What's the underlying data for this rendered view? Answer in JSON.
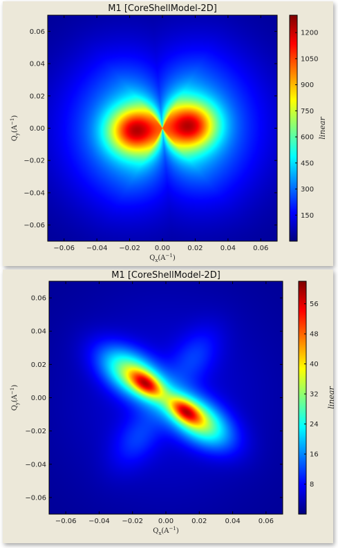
{
  "chart_data": [
    {
      "type": "heatmap",
      "title": "M1 [CoreShellModel-2D]",
      "xlabel_main": "Q",
      "xlabel_sub": "x",
      "xlabel_unit": "(A",
      "xlabel_exp": "−1",
      "xlabel_close": ")",
      "ylabel_main": "Q",
      "ylabel_sub": "y",
      "ylabel_unit": "(A",
      "ylabel_exp": "−1",
      "ylabel_close": ")",
      "xlim": [
        -0.07,
        0.07
      ],
      "ylim": [
        -0.07,
        0.07
      ],
      "xticks": [
        -0.06,
        -0.04,
        -0.02,
        0.0,
        0.02,
        0.04,
        0.06
      ],
      "xtick_labels": [
        "−0.06",
        "−0.04",
        "−0.02",
        "0.00",
        "0.02",
        "0.04",
        "0.06"
      ],
      "yticks": [
        -0.06,
        -0.04,
        -0.02,
        0.0,
        0.02,
        0.04,
        0.06
      ],
      "ytick_labels": [
        "−0.06",
        "−0.04",
        "−0.02",
        "0.00",
        "0.02",
        "0.04",
        "0.06"
      ],
      "colorbar": {
        "label": "linear",
        "range": [
          0,
          1300
        ],
        "ticks": [
          150,
          300,
          450,
          600,
          750,
          900,
          1050,
          1200
        ],
        "tick_labels": [
          "150",
          "300",
          "450",
          "600",
          "750",
          "900",
          "1050",
          "1200"
        ]
      },
      "colormap": "jet",
      "pattern": {
        "description_free": true,
        "peak_value": 1300,
        "lobe_axis_angle_deg": 5,
        "lobe_offset_q": 0.017
      }
    },
    {
      "type": "heatmap",
      "title": "M1 [CoreShellModel-2D]",
      "xlabel_main": "Q",
      "xlabel_sub": "x",
      "xlabel_unit": "(A",
      "xlabel_exp": "−1",
      "xlabel_close": ")",
      "ylabel_main": "Q",
      "ylabel_sub": "y",
      "ylabel_unit": "(A",
      "ylabel_exp": "−1",
      "ylabel_close": ")",
      "xlim": [
        -0.07,
        0.07
      ],
      "ylim": [
        -0.07,
        0.07
      ],
      "xticks": [
        -0.06,
        -0.04,
        -0.02,
        0.0,
        0.02,
        0.04,
        0.06
      ],
      "xtick_labels": [
        "−0.06",
        "−0.04",
        "−0.02",
        "0.00",
        "0.02",
        "0.04",
        "0.06"
      ],
      "yticks": [
        -0.06,
        -0.04,
        -0.02,
        0.0,
        0.02,
        0.04,
        0.06
      ],
      "ytick_labels": [
        "−0.06",
        "−0.04",
        "−0.02",
        "0.00",
        "0.02",
        "0.04",
        "0.06"
      ],
      "colorbar": {
        "label": "linear",
        "range": [
          0,
          62
        ],
        "ticks": [
          8,
          16,
          24,
          32,
          40,
          48,
          56
        ],
        "tick_labels": [
          "8",
          "16",
          "24",
          "32",
          "40",
          "48",
          "56"
        ]
      },
      "colormap": "jet",
      "pattern": {
        "peak_value": 62,
        "lobe_axis_angle_deg": -35,
        "lobe_offset_q": 0.022
      }
    }
  ]
}
